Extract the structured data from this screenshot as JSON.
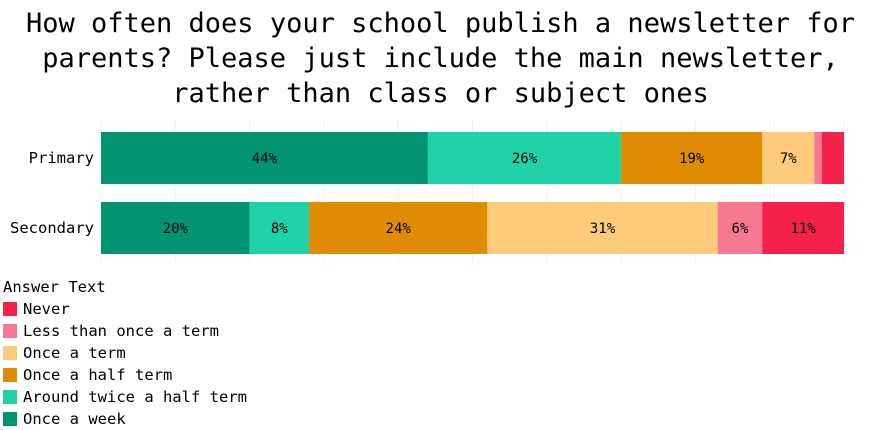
{
  "chart_data": {
    "type": "bar",
    "orientation": "horizontal",
    "stacked": true,
    "title": "How often does your school publish a newsletter for\nparents? Please just include the main newsletter,\nrather than class or subject ones",
    "categories": [
      "Primary",
      "Secondary"
    ],
    "series": [
      {
        "name": "Once a week",
        "color": "#029370",
        "values": [
          44,
          20
        ],
        "labels": [
          "44%",
          "20%"
        ]
      },
      {
        "name": "Around twice a half term",
        "color": "#1fd2a8",
        "values": [
          26,
          8
        ],
        "labels": [
          "26%",
          "8%"
        ]
      },
      {
        "name": "Once a half term",
        "color": "#e08c00",
        "values": [
          19,
          24
        ],
        "labels": [
          "19%",
          "24%"
        ]
      },
      {
        "name": "Once a term",
        "color": "#fecb7b",
        "values": [
          7,
          31
        ],
        "labels": [
          "7%",
          "31%"
        ]
      },
      {
        "name": "Less than once a term",
        "color": "#f77991",
        "values": [
          1,
          6
        ],
        "labels": [
          "",
          "6%"
        ]
      },
      {
        "name": "Never",
        "color": "#f4224b",
        "values": [
          3,
          11
        ],
        "labels": [
          "",
          "11%"
        ]
      }
    ],
    "xlim": [
      0,
      100
    ],
    "grid": true,
    "legend": {
      "title": "Answer Text",
      "placement": "bottom-left",
      "order": [
        "Never",
        "Less than once a term",
        "Once a term",
        "Once a half term",
        "Around twice a half term",
        "Once a week"
      ]
    }
  }
}
